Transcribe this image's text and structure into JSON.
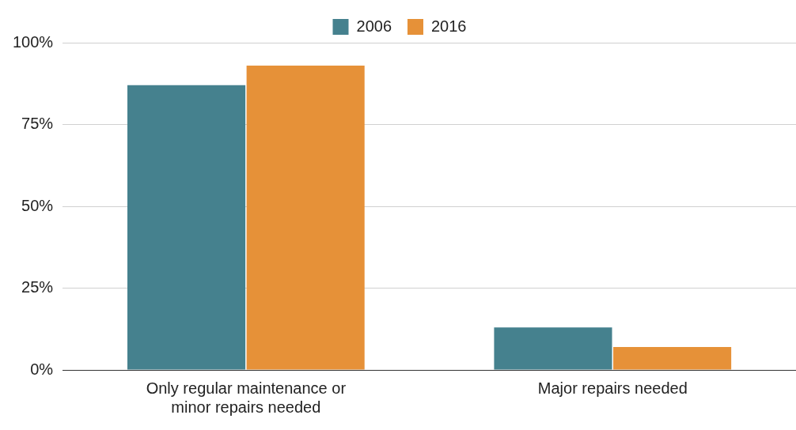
{
  "chart_data": {
    "type": "bar",
    "categories": [
      "Only regular maintenance or minor repairs needed",
      "Major repairs needed"
    ],
    "series": [
      {
        "name": "2006",
        "color": "#45818e",
        "values": [
          87,
          13
        ]
      },
      {
        "name": "2016",
        "color": "#e69138",
        "values": [
          93,
          7
        ]
      }
    ],
    "ylim": [
      0,
      100
    ],
    "yticks": [
      {
        "value": 0,
        "label": "0%"
      },
      {
        "value": 25,
        "label": "25%"
      },
      {
        "value": 50,
        "label": "50%"
      },
      {
        "value": 75,
        "label": "75%"
      },
      {
        "value": 100,
        "label": "100%"
      }
    ],
    "grid": "y",
    "legend": "top"
  }
}
